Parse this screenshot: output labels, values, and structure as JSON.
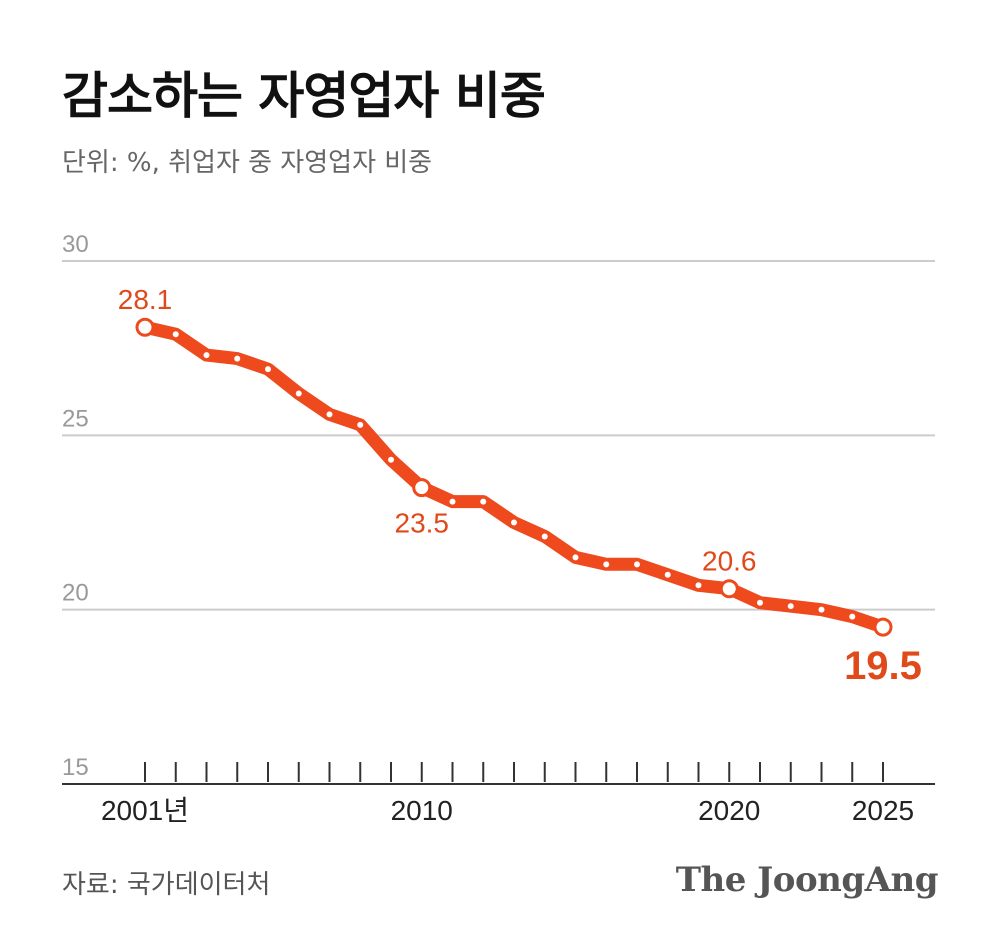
{
  "header": {
    "title": "감소하는 자영업자 비중",
    "subtitle": "단위: %, 취업자 중 자영업자 비중"
  },
  "footer": {
    "source": "자료: 국가데이터처",
    "brand": "The JoongAng"
  },
  "colors": {
    "line": "#ee4a1d",
    "grid": "#cccccc",
    "axis": "#333333",
    "label": "#e04a1a"
  },
  "chart_data": {
    "type": "line",
    "title": "감소하는 자영업자 비중",
    "ylabel": "%",
    "xlabel": "",
    "ylim": [
      15,
      30
    ],
    "yticks": [
      "30",
      "25",
      "20",
      "15"
    ],
    "ytick_values": [
      30,
      25,
      20,
      15
    ],
    "x": [
      2001,
      2002,
      2003,
      2004,
      2005,
      2006,
      2007,
      2008,
      2009,
      2010,
      2011,
      2012,
      2013,
      2014,
      2015,
      2016,
      2017,
      2018,
      2019,
      2020,
      2021,
      2022,
      2023,
      2024,
      2025
    ],
    "xticks": [
      {
        "year": 2001,
        "label": "2001년"
      },
      {
        "year": 2010,
        "label": "2010"
      },
      {
        "year": 2020,
        "label": "2020"
      },
      {
        "year": 2025,
        "label": "2025"
      }
    ],
    "series": [
      {
        "name": "자영업자 비중",
        "values": [
          28.1,
          27.9,
          27.3,
          27.2,
          26.9,
          26.2,
          25.6,
          25.3,
          24.3,
          23.5,
          23.1,
          23.1,
          22.5,
          22.1,
          21.5,
          21.3,
          21.3,
          21.0,
          20.7,
          20.6,
          20.2,
          20.1,
          20.0,
          19.8,
          19.5
        ]
      }
    ],
    "annotations": [
      {
        "year": 2001,
        "value": 28.1,
        "text": "28.1",
        "placement": "above"
      },
      {
        "year": 2010,
        "value": 23.5,
        "text": "23.5",
        "placement": "below"
      },
      {
        "year": 2020,
        "value": 20.6,
        "text": "20.6",
        "placement": "above"
      },
      {
        "year": 2025,
        "value": 19.5,
        "text": "19.5",
        "placement": "below",
        "emphasis": true
      }
    ]
  }
}
